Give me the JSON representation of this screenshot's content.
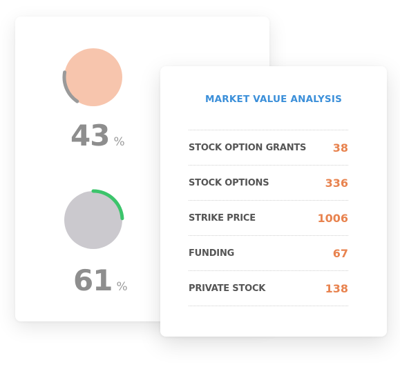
{
  "gauges": [
    {
      "value": "43",
      "unit": "%",
      "percent": 43,
      "fill_color": "#f7c5ad",
      "ring_color": "#9a9a9a"
    },
    {
      "value": "61",
      "unit": "%",
      "percent": 61,
      "fill_color": "#cbc9ce",
      "ring_color": "#3cc46b"
    }
  ],
  "analysis": {
    "title": "MARKET VALUE ANALYSIS",
    "title_color": "#3b8fd9",
    "value_color": "#e8834f",
    "rows": [
      {
        "label": "STOCK OPTION GRANTS",
        "value": "38"
      },
      {
        "label": "STOCK OPTIONS",
        "value": "336"
      },
      {
        "label": "STRIKE PRICE",
        "value": "1006"
      },
      {
        "label": "FUNDING",
        "value": "67"
      },
      {
        "label": "PRIVATE STOCK",
        "value": "138"
      }
    ]
  }
}
